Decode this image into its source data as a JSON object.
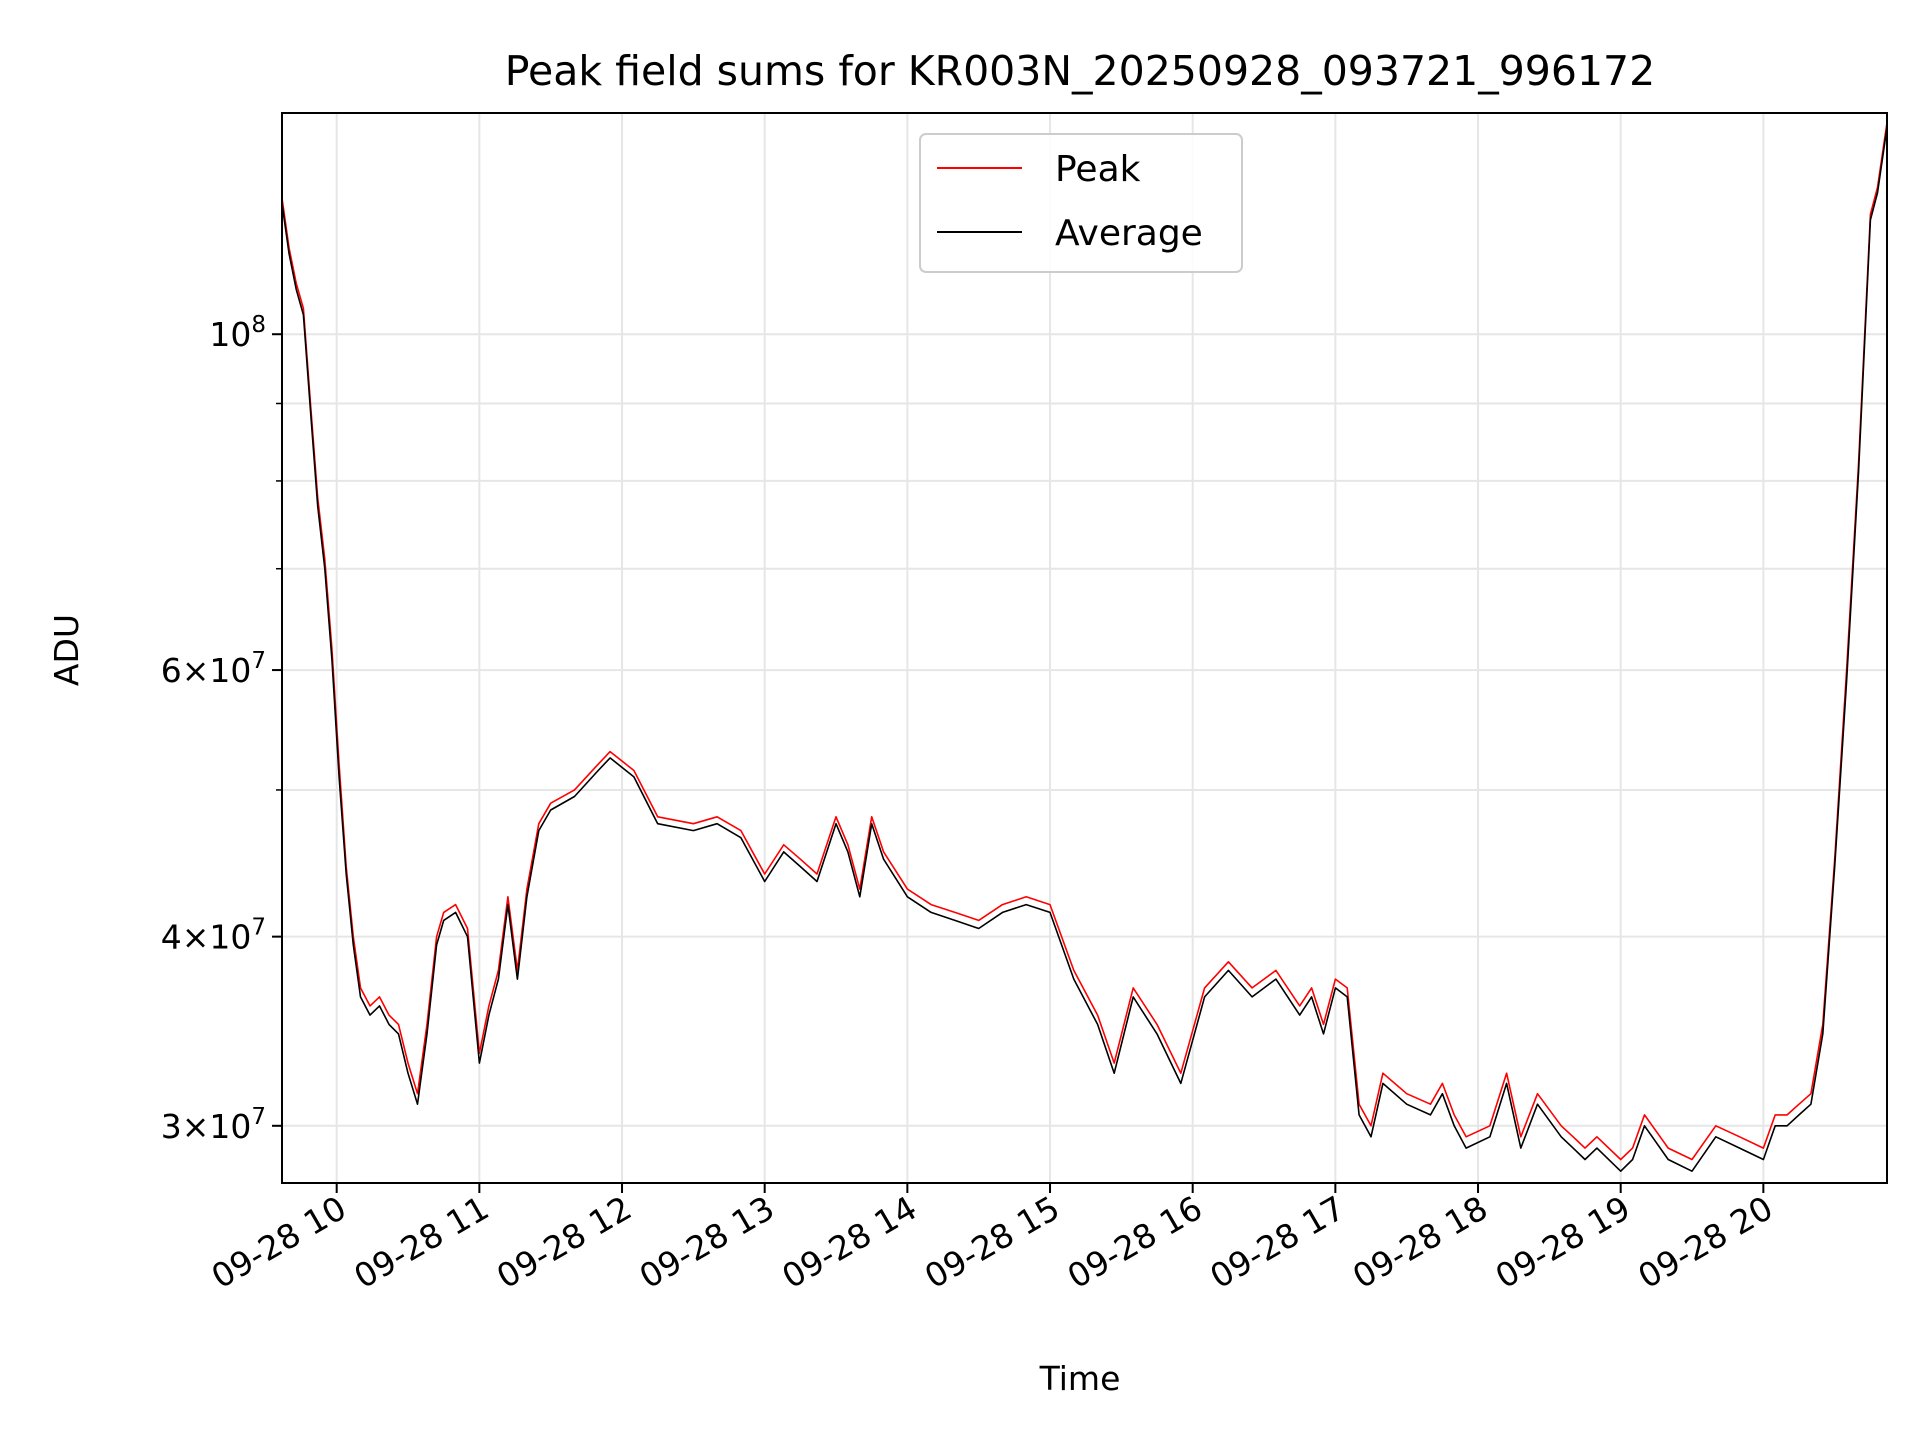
{
  "chart_data": {
    "type": "line",
    "title": "Peak field sums for KR003N_20250928_093721_996172",
    "xlabel": "Time",
    "ylabel": "ADU",
    "yscale": "log",
    "xlim": [
      "2025-09-28 09:37",
      "2025-09-28 20:52"
    ],
    "ylim": [
      27500000,
      140000000
    ],
    "grid": true,
    "legend": {
      "placement": "top-center",
      "entries": [
        "Peak",
        "Average"
      ]
    },
    "x_ticks": [
      "09-28 10",
      "09-28 11",
      "09-28 12",
      "09-28 13",
      "09-28 14",
      "09-28 15",
      "09-28 16",
      "09-28 17",
      "09-28 18",
      "09-28 19",
      "09-28 20"
    ],
    "y_ticks": [
      {
        "value": 100000000,
        "mantissa": "",
        "exponent": "8"
      },
      {
        "value": 60000000,
        "mantissa": "6",
        "exponent": "7"
      },
      {
        "value": 40000000,
        "mantissa": "4",
        "exponent": "7"
      },
      {
        "value": 30000000,
        "mantissa": "3",
        "exponent": "7"
      }
    ],
    "series": [
      {
        "name": "Peak",
        "color": "#ff0000",
        "x": [
          "2025-09-28 09:37",
          "2025-09-28 09:40",
          "2025-09-28 09:43",
          "2025-09-28 09:46",
          "2025-09-28 09:49",
          "2025-09-28 09:52",
          "2025-09-28 09:55",
          "2025-09-28 09:58",
          "2025-09-28 10:01",
          "2025-09-28 10:04",
          "2025-09-28 10:07",
          "2025-09-28 10:10",
          "2025-09-28 10:14",
          "2025-09-28 10:18",
          "2025-09-28 10:22",
          "2025-09-28 10:26",
          "2025-09-28 10:30",
          "2025-09-28 10:34",
          "2025-09-28 10:38",
          "2025-09-28 10:42",
          "2025-09-28 10:45",
          "2025-09-28 10:50",
          "2025-09-28 10:55",
          "2025-09-28 11:00",
          "2025-09-28 11:04",
          "2025-09-28 11:08",
          "2025-09-28 11:12",
          "2025-09-28 11:16",
          "2025-09-28 11:20",
          "2025-09-28 11:25",
          "2025-09-28 11:30",
          "2025-09-28 11:40",
          "2025-09-28 11:50",
          "2025-09-28 11:55",
          "2025-09-28 12:05",
          "2025-09-28 12:15",
          "2025-09-28 12:30",
          "2025-09-28 12:40",
          "2025-09-28 12:50",
          "2025-09-28 13:00",
          "2025-09-28 13:08",
          "2025-09-28 13:15",
          "2025-09-28 13:22",
          "2025-09-28 13:30",
          "2025-09-28 13:35",
          "2025-09-28 13:40",
          "2025-09-28 13:45",
          "2025-09-28 13:50",
          "2025-09-28 14:00",
          "2025-09-28 14:10",
          "2025-09-28 14:20",
          "2025-09-28 14:30",
          "2025-09-28 14:40",
          "2025-09-28 14:50",
          "2025-09-28 15:00",
          "2025-09-28 15:10",
          "2025-09-28 15:20",
          "2025-09-28 15:27",
          "2025-09-28 15:35",
          "2025-09-28 15:45",
          "2025-09-28 15:55",
          "2025-09-28 16:05",
          "2025-09-28 16:15",
          "2025-09-28 16:25",
          "2025-09-28 16:35",
          "2025-09-28 16:45",
          "2025-09-28 16:50",
          "2025-09-28 16:55",
          "2025-09-28 17:00",
          "2025-09-28 17:05",
          "2025-09-28 17:10",
          "2025-09-28 17:15",
          "2025-09-28 17:20",
          "2025-09-28 17:30",
          "2025-09-28 17:40",
          "2025-09-28 17:45",
          "2025-09-28 17:50",
          "2025-09-28 17:55",
          "2025-09-28 18:05",
          "2025-09-28 18:12",
          "2025-09-28 18:18",
          "2025-09-28 18:25",
          "2025-09-28 18:35",
          "2025-09-28 18:40",
          "2025-09-28 18:45",
          "2025-09-28 18:50",
          "2025-09-28 19:00",
          "2025-09-28 19:05",
          "2025-09-28 19:10",
          "2025-09-28 19:20",
          "2025-09-28 19:30",
          "2025-09-28 19:40",
          "2025-09-28 19:50",
          "2025-09-28 20:00",
          "2025-09-28 20:05",
          "2025-09-28 20:10",
          "2025-09-28 20:15",
          "2025-09-28 20:20",
          "2025-09-28 20:25",
          "2025-09-28 20:30",
          "2025-09-28 20:35",
          "2025-09-28 20:40",
          "2025-09-28 20:45",
          "2025-09-28 20:48",
          "2025-09-28 20:52"
        ],
        "y": [
          123000000,
          114000000,
          108000000,
          104000000,
          90000000,
          78000000,
          71000000,
          62000000,
          52000000,
          44500000,
          40000000,
          37000000,
          36000000,
          36500000,
          35500000,
          35000000,
          33000000,
          31500000,
          35000000,
          40000000,
          41500000,
          42000000,
          40500000,
          33500000,
          36000000,
          38000000,
          42500000,
          38000000,
          43000000,
          47500000,
          49000000,
          50000000,
          52000000,
          53000000,
          51500000,
          48000000,
          47500000,
          48000000,
          47000000,
          44000000,
          46000000,
          45000000,
          44000000,
          48000000,
          46000000,
          43000000,
          48000000,
          45500000,
          43000000,
          42000000,
          41500000,
          41000000,
          42000000,
          42500000,
          42000000,
          38000000,
          35500000,
          33000000,
          37000000,
          35000000,
          32500000,
          37000000,
          38500000,
          37000000,
          38000000,
          36000000,
          37000000,
          35000000,
          37500000,
          37000000,
          31000000,
          30000000,
          32500000,
          31500000,
          31000000,
          32000000,
          30500000,
          29500000,
          30000000,
          32500000,
          29500000,
          31500000,
          30000000,
          29500000,
          29000000,
          29500000,
          28500000,
          29000000,
          30500000,
          29000000,
          28500000,
          30000000,
          29500000,
          29000000,
          30500000,
          30500000,
          31000000,
          31500000,
          35000000,
          45000000,
          60000000,
          82000000,
          120000000,
          125000000,
          138000000
        ]
      },
      {
        "name": "Average",
        "color": "#000000",
        "x": [
          "2025-09-28 09:37",
          "2025-09-28 09:40",
          "2025-09-28 09:43",
          "2025-09-28 09:46",
          "2025-09-28 09:49",
          "2025-09-28 09:52",
          "2025-09-28 09:55",
          "2025-09-28 09:58",
          "2025-09-28 10:01",
          "2025-09-28 10:04",
          "2025-09-28 10:07",
          "2025-09-28 10:10",
          "2025-09-28 10:14",
          "2025-09-28 10:18",
          "2025-09-28 10:22",
          "2025-09-28 10:26",
          "2025-09-28 10:30",
          "2025-09-28 10:34",
          "2025-09-28 10:38",
          "2025-09-28 10:42",
          "2025-09-28 10:45",
          "2025-09-28 10:50",
          "2025-09-28 10:55",
          "2025-09-28 11:00",
          "2025-09-28 11:04",
          "2025-09-28 11:08",
          "2025-09-28 11:12",
          "2025-09-28 11:16",
          "2025-09-28 11:20",
          "2025-09-28 11:25",
          "2025-09-28 11:30",
          "2025-09-28 11:40",
          "2025-09-28 11:50",
          "2025-09-28 11:55",
          "2025-09-28 12:05",
          "2025-09-28 12:15",
          "2025-09-28 12:30",
          "2025-09-28 12:40",
          "2025-09-28 12:50",
          "2025-09-28 13:00",
          "2025-09-28 13:08",
          "2025-09-28 13:15",
          "2025-09-28 13:22",
          "2025-09-28 13:30",
          "2025-09-28 13:35",
          "2025-09-28 13:40",
          "2025-09-28 13:45",
          "2025-09-28 13:50",
          "2025-09-28 14:00",
          "2025-09-28 14:10",
          "2025-09-28 14:20",
          "2025-09-28 14:30",
          "2025-09-28 14:40",
          "2025-09-28 14:50",
          "2025-09-28 15:00",
          "2025-09-28 15:10",
          "2025-09-28 15:20",
          "2025-09-28 15:27",
          "2025-09-28 15:35",
          "2025-09-28 15:45",
          "2025-09-28 15:55",
          "2025-09-28 16:05",
          "2025-09-28 16:15",
          "2025-09-28 16:25",
          "2025-09-28 16:35",
          "2025-09-28 16:45",
          "2025-09-28 16:50",
          "2025-09-28 16:55",
          "2025-09-28 17:00",
          "2025-09-28 17:05",
          "2025-09-28 17:10",
          "2025-09-28 17:15",
          "2025-09-28 17:20",
          "2025-09-28 17:30",
          "2025-09-28 17:40",
          "2025-09-28 17:45",
          "2025-09-28 17:50",
          "2025-09-28 17:55",
          "2025-09-28 18:05",
          "2025-09-28 18:12",
          "2025-09-28 18:18",
          "2025-09-28 18:25",
          "2025-09-28 18:35",
          "2025-09-28 18:40",
          "2025-09-28 18:45",
          "2025-09-28 18:50",
          "2025-09-28 19:00",
          "2025-09-28 19:05",
          "2025-09-28 19:10",
          "2025-09-28 19:20",
          "2025-09-28 19:30",
          "2025-09-28 19:40",
          "2025-09-28 19:50",
          "2025-09-28 20:00",
          "2025-09-28 20:05",
          "2025-09-28 20:10",
          "2025-09-28 20:15",
          "2025-09-28 20:20",
          "2025-09-28 20:25",
          "2025-09-28 20:30",
          "2025-09-28 20:35",
          "2025-09-28 20:40",
          "2025-09-28 20:45",
          "2025-09-28 20:48",
          "2025-09-28 20:52"
        ],
        "y": [
          122000000,
          113000000,
          107000000,
          103000000,
          89000000,
          77000000,
          70000000,
          61000000,
          51000000,
          44000000,
          39500000,
          36500000,
          35500000,
          36000000,
          35000000,
          34500000,
          32500000,
          31000000,
          34500000,
          39500000,
          41000000,
          41500000,
          40000000,
          33000000,
          35500000,
          37500000,
          42000000,
          37500000,
          42500000,
          47000000,
          48500000,
          49500000,
          51500000,
          52500000,
          51000000,
          47500000,
          47000000,
          47500000,
          46500000,
          43500000,
          45500000,
          44500000,
          43500000,
          47500000,
          45500000,
          42500000,
          47500000,
          45000000,
          42500000,
          41500000,
          41000000,
          40500000,
          41500000,
          42000000,
          41500000,
          37500000,
          35000000,
          32500000,
          36500000,
          34500000,
          32000000,
          36500000,
          38000000,
          36500000,
          37500000,
          35500000,
          36500000,
          34500000,
          37000000,
          36500000,
          30500000,
          29500000,
          32000000,
          31000000,
          30500000,
          31500000,
          30000000,
          29000000,
          29500000,
          32000000,
          29000000,
          31000000,
          29500000,
          29000000,
          28500000,
          29000000,
          28000000,
          28500000,
          30000000,
          28500000,
          28000000,
          29500000,
          29000000,
          28500000,
          30000000,
          30000000,
          30500000,
          31000000,
          34500000,
          44500000,
          59000000,
          81000000,
          119000000,
          124000000,
          137000000
        ]
      }
    ]
  }
}
